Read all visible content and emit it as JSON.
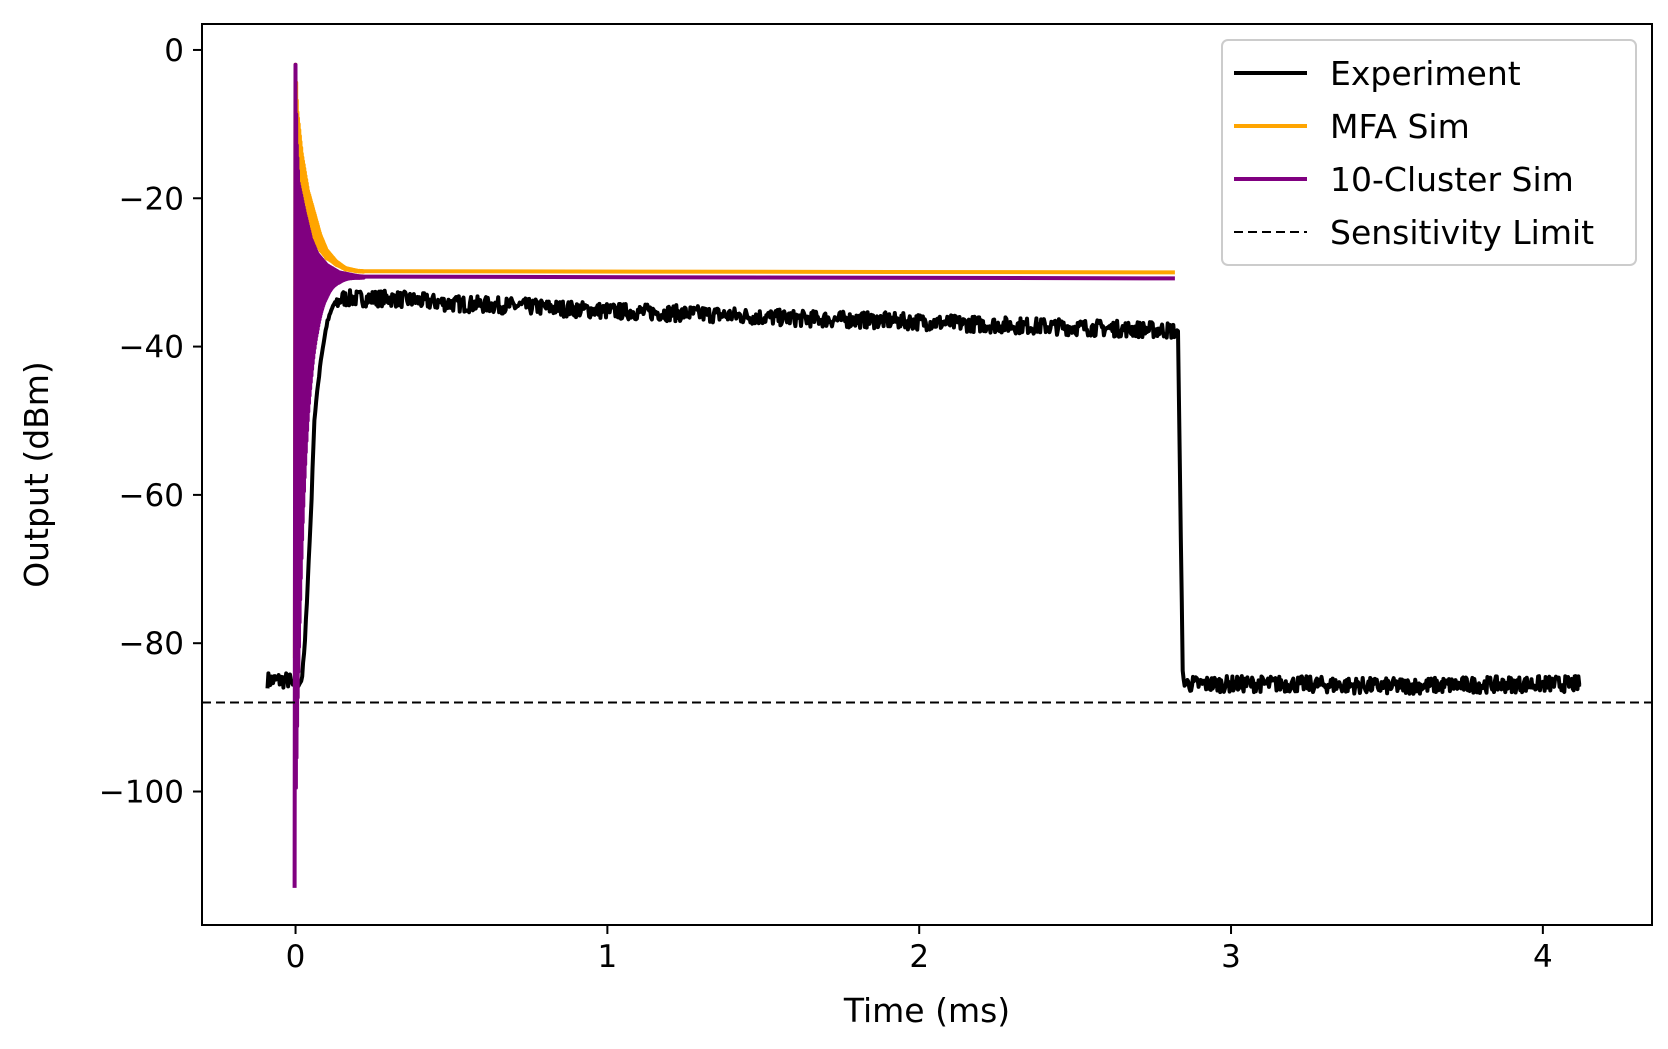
{
  "chart_data": {
    "type": "line",
    "title": "",
    "xlabel": "Time (ms)",
    "ylabel": "Output (dBm)",
    "xlim": [
      -0.3,
      4.35
    ],
    "ylim": [
      -118,
      3.5
    ],
    "xticks": [
      0,
      1,
      2,
      3,
      4
    ],
    "xtick_labels": [
      "0",
      "1",
      "2",
      "3",
      "4"
    ],
    "yticks": [
      0,
      -20,
      -40,
      -60,
      -80,
      -100
    ],
    "ytick_labels": [
      "0",
      "−20",
      "−40",
      "−60",
      "−80",
      "−100"
    ],
    "grid": false,
    "legend_position": "top-right",
    "sensitivity_limit": -88,
    "series": [
      {
        "name": "Experiment",
        "color": "#000000",
        "style": "solid",
        "x": [
          -0.09,
          -0.02,
          -0.005,
          0.02,
          0.03,
          0.05,
          0.06,
          0.08,
          0.1,
          0.12,
          0.15,
          0.2,
          0.3,
          0.5,
          0.7,
          1.0,
          1.3,
          1.6,
          1.9,
          2.2,
          2.5,
          2.8,
          2.83,
          2.845,
          2.85,
          2.9,
          3.2,
          3.5,
          3.8,
          4.0,
          4.12
        ],
        "y": [
          -85,
          -85,
          -86,
          -85,
          -80,
          -62,
          -50,
          -42,
          -37,
          -34.5,
          -33.5,
          -33.5,
          -33.5,
          -34.2,
          -34.5,
          -35.2,
          -35.6,
          -36.2,
          -36.5,
          -37.0,
          -37.4,
          -37.8,
          -38,
          -84,
          -85.5,
          -85.5,
          -85.5,
          -85.8,
          -85.6,
          -85.5,
          -85.5
        ]
      },
      {
        "name": "MFA Sim",
        "color": "#ffa500",
        "style": "solid",
        "x": [
          -0.002,
          0.0,
          0.005,
          0.02,
          0.04,
          0.06,
          0.08,
          0.1,
          0.13,
          0.16,
          0.2,
          0.3,
          0.5,
          1.0,
          2.0,
          2.82
        ],
        "y": [
          -82,
          -2,
          -8,
          -14,
          -19,
          -22,
          -25,
          -27,
          -28.5,
          -29.4,
          -29.8,
          -30,
          -30,
          -30,
          -30,
          -30
        ]
      },
      {
        "name": "10-Cluster Sim",
        "color": "#800080",
        "style": "solid",
        "x": [
          -0.003,
          0.0,
          0.003,
          0.01,
          0.03,
          0.05,
          0.07,
          0.1,
          0.14,
          0.2,
          0.3,
          0.5,
          1.0,
          2.0,
          2.82
        ],
        "y": [
          -113,
          -2,
          -12,
          -18,
          -22,
          -25.5,
          -27.5,
          -29,
          -30,
          -30.5,
          -30.8,
          -30.8,
          -30.8,
          -30.8,
          -30.8
        ]
      },
      {
        "name": "Sensitivity Limit",
        "color": "#000000",
        "style": "dashed",
        "x": [
          -0.3,
          4.35
        ],
        "y": [
          -88,
          -88
        ]
      }
    ]
  }
}
